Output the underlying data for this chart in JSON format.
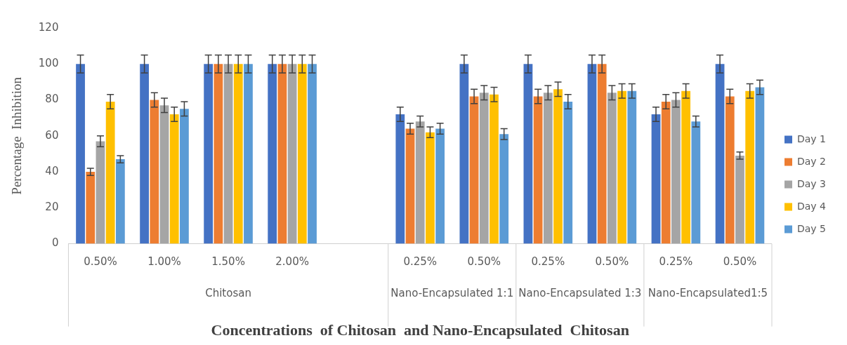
{
  "chart_data": {
    "type": "bar",
    "xlabel": "Concentrations  of Chitosan  and Nano-Encapsulated  Chitosan",
    "ylabel": "Percentage  Inhibition",
    "categories": [
      "0.50%",
      "1.00%",
      "1.50%",
      "2.00%",
      null,
      "0.25%",
      "0.50%",
      "0.25%",
      "0.50%",
      "0.25%",
      "0.50%"
    ],
    "series": [
      {
        "name": "Day 1",
        "color": "#4472c4",
        "values": [
          100,
          100,
          100,
          100,
          null,
          72,
          100,
          100,
          100,
          72,
          100
        ],
        "errors": [
          5,
          5,
          5,
          5,
          null,
          4,
          5,
          5,
          5,
          4,
          5
        ]
      },
      {
        "name": "Day 2",
        "color": "#ed7d31",
        "values": [
          40,
          80,
          100,
          100,
          null,
          64,
          82,
          82,
          100,
          79,
          82
        ],
        "errors": [
          2,
          4,
          5,
          5,
          null,
          3,
          4,
          4,
          5,
          4,
          4
        ]
      },
      {
        "name": "Day 3",
        "color": "#a5a5a5",
        "values": [
          57,
          77,
          100,
          100,
          null,
          68,
          84,
          84,
          84,
          80,
          49
        ],
        "errors": [
          3,
          4,
          5,
          5,
          null,
          3,
          4,
          4,
          4,
          4,
          2
        ]
      },
      {
        "name": "Day 4",
        "color": "#ffc000",
        "values": [
          79,
          72,
          100,
          100,
          null,
          62,
          83,
          86,
          85,
          85,
          85
        ],
        "errors": [
          4,
          4,
          5,
          5,
          null,
          3,
          4,
          4,
          4,
          4,
          4
        ]
      },
      {
        "name": "Day 5",
        "color": "#5b9bd5",
        "values": [
          47,
          75,
          100,
          100,
          null,
          64,
          61,
          79,
          85,
          68,
          87
        ],
        "errors": [
          2,
          4,
          5,
          5,
          null,
          3,
          3,
          4,
          4,
          3,
          4
        ]
      }
    ],
    "ylim": [
      0,
      120
    ],
    "yticks": [
      0,
      20,
      40,
      60,
      80,
      100,
      120
    ],
    "grid": false,
    "legend": "right",
    "annotations": [
      "Chitosan",
      "Nano-Encapsulated 1:1",
      "Nano-Encapsulated 1:3",
      "Nano-Encapsulated1:5"
    ]
  }
}
